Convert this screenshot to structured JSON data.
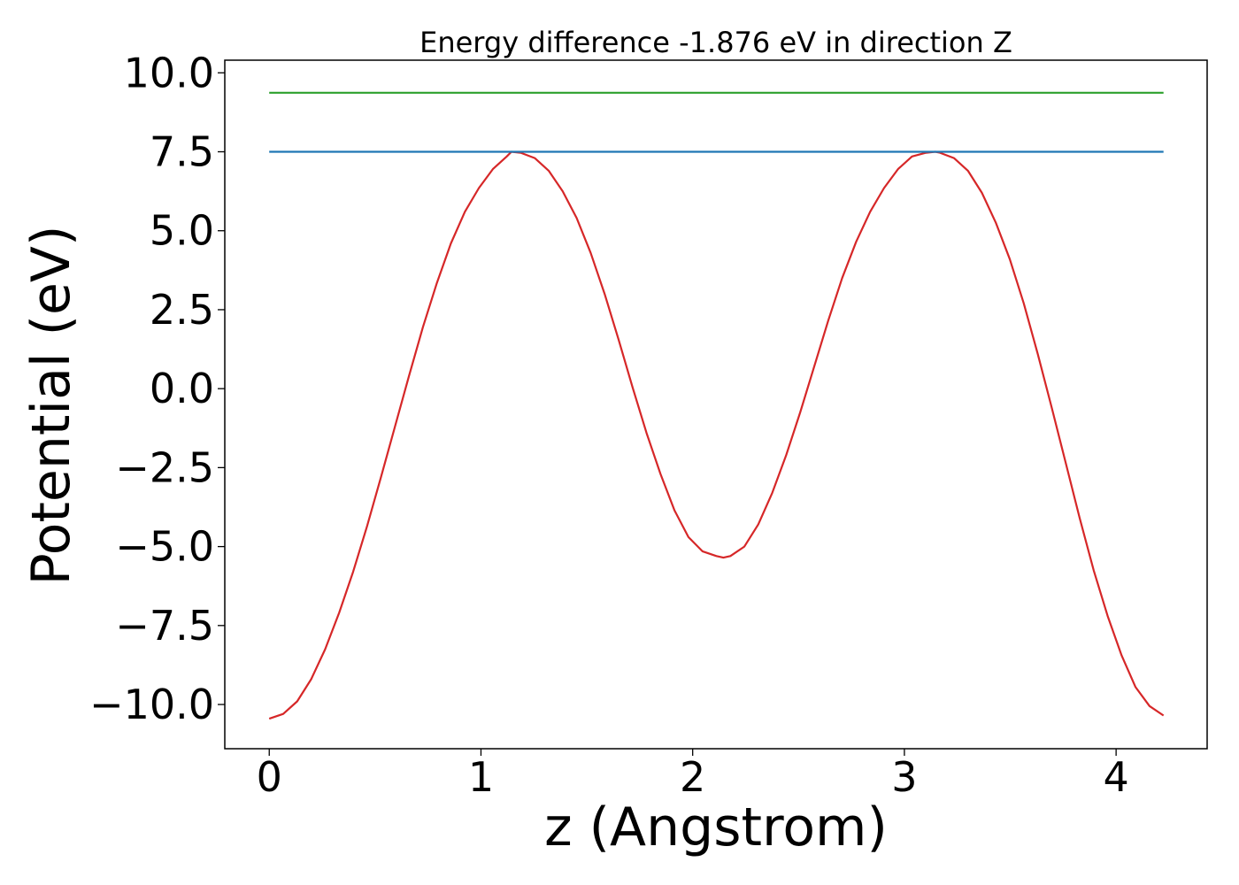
{
  "chart_data": {
    "type": "line",
    "title": "Energy difference -1.876 eV in direction Z",
    "xlabel": "z (Angstrom)",
    "ylabel": "Potential (eV)",
    "xlim": [
      -0.21,
      4.43
    ],
    "ylim": [
      -11.4,
      10.4
    ],
    "xticks": [
      0,
      1,
      2,
      3,
      4
    ],
    "xtick_labels": [
      "0",
      "1",
      "2",
      "3",
      "4"
    ],
    "yticks": [
      10.0,
      7.5,
      5.0,
      2.5,
      0.0,
      -2.5,
      -5.0,
      -7.5,
      -10.0
    ],
    "ytick_labels": [
      "10.0",
      "7.5",
      "5.0",
      "2.5",
      "0.0",
      "−2.5",
      "−5.0",
      "−7.5",
      "−10.0"
    ],
    "grid": false,
    "legend": "none",
    "series": [
      {
        "color": "#d62728",
        "x": [
          0.0,
          0.066,
          0.132,
          0.198,
          0.264,
          0.33,
          0.396,
          0.462,
          0.528,
          0.594,
          0.66,
          0.726,
          0.792,
          0.858,
          0.924,
          0.99,
          1.056,
          1.122,
          1.144,
          1.188,
          1.254,
          1.32,
          1.386,
          1.452,
          1.518,
          1.584,
          1.65,
          1.716,
          1.782,
          1.848,
          1.914,
          1.98,
          2.046,
          2.112,
          2.145,
          2.178,
          2.244,
          2.31,
          2.376,
          2.442,
          2.508,
          2.574,
          2.64,
          2.706,
          2.772,
          2.838,
          2.904,
          2.97,
          3.036,
          3.102,
          3.146,
          3.168,
          3.234,
          3.3,
          3.366,
          3.432,
          3.498,
          3.564,
          3.63,
          3.696,
          3.762,
          3.828,
          3.894,
          3.96,
          4.026,
          4.092,
          4.158,
          4.224
        ],
        "values": [
          -10.45,
          -10.3,
          -9.9,
          -9.2,
          -8.25,
          -7.1,
          -5.8,
          -4.35,
          -2.8,
          -1.2,
          0.4,
          1.95,
          3.35,
          4.6,
          5.6,
          6.35,
          6.95,
          7.35,
          7.5,
          7.47,
          7.3,
          6.9,
          6.25,
          5.4,
          4.3,
          3.0,
          1.55,
          0.05,
          -1.4,
          -2.7,
          -3.85,
          -4.7,
          -5.15,
          -5.3,
          -5.35,
          -5.3,
          -5.0,
          -4.3,
          -3.3,
          -2.1,
          -0.75,
          0.7,
          2.15,
          3.5,
          4.65,
          5.6,
          6.35,
          6.95,
          7.35,
          7.47,
          7.5,
          7.47,
          7.3,
          6.9,
          6.2,
          5.25,
          4.1,
          2.7,
          1.1,
          -0.6,
          -2.35,
          -4.1,
          -5.75,
          -7.2,
          -8.45,
          -9.45,
          -10.05,
          -10.35
        ]
      },
      {
        "color": "#1f77b4",
        "x": [
          0.0,
          4.224
        ],
        "values": [
          7.5,
          7.5
        ]
      },
      {
        "color": "#2ca02c",
        "x": [
          0.0,
          4.224
        ],
        "values": [
          9.37,
          9.37
        ]
      }
    ]
  }
}
